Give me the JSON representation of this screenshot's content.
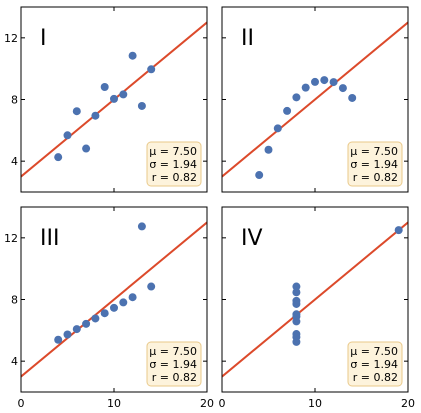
{
  "chart_data": [
    {
      "type": "scatter",
      "panel_label": "I",
      "x": [
        10,
        8,
        13,
        9,
        11,
        14,
        6,
        4,
        12,
        7,
        5
      ],
      "y": [
        8.04,
        6.95,
        7.58,
        8.81,
        8.33,
        9.96,
        7.24,
        4.26,
        10.84,
        4.82,
        5.68
      ],
      "fit": {
        "intercept": 3.0,
        "slope": 0.5
      },
      "stats": {
        "mu": "μ = 7.50",
        "sigma": "σ = 1.94",
        "r": "r = 0.82"
      },
      "xlim": [
        0,
        20
      ],
      "ylim": [
        2,
        14
      ],
      "xticks": [
        0,
        10,
        20
      ],
      "yticks": [
        4,
        8,
        12
      ],
      "show_xticklabels": false,
      "show_yticklabels": true,
      "point_color": "#4c72b0",
      "line_color": "#dc4a2b"
    },
    {
      "type": "scatter",
      "panel_label": "II",
      "x": [
        10,
        8,
        13,
        9,
        11,
        14,
        6,
        4,
        12,
        7,
        5
      ],
      "y": [
        9.14,
        8.14,
        8.74,
        8.77,
        9.26,
        8.1,
        6.13,
        3.1,
        9.13,
        7.26,
        4.74
      ],
      "fit": {
        "intercept": 3.0,
        "slope": 0.5
      },
      "stats": {
        "mu": "μ = 7.50",
        "sigma": "σ = 1.94",
        "r": "r = 0.82"
      },
      "xlim": [
        0,
        20
      ],
      "ylim": [
        2,
        14
      ],
      "xticks": [
        0,
        10,
        20
      ],
      "yticks": [
        4,
        8,
        12
      ],
      "show_xticklabels": false,
      "show_yticklabels": false,
      "point_color": "#4c72b0",
      "line_color": "#dc4a2b"
    },
    {
      "type": "scatter",
      "panel_label": "III",
      "x": [
        10,
        8,
        13,
        9,
        11,
        14,
        6,
        4,
        12,
        7,
        5
      ],
      "y": [
        7.46,
        6.77,
        12.74,
        7.11,
        7.81,
        8.84,
        6.08,
        5.39,
        8.15,
        6.42,
        5.73
      ],
      "fit": {
        "intercept": 3.0,
        "slope": 0.5
      },
      "stats": {
        "mu": "μ = 7.50",
        "sigma": "σ = 1.94",
        "r": "r = 0.82"
      },
      "xlim": [
        0,
        20
      ],
      "ylim": [
        2,
        14
      ],
      "xticks": [
        0,
        10,
        20
      ],
      "yticks": [
        4,
        8,
        12
      ],
      "show_xticklabels": true,
      "show_yticklabels": true,
      "xticklabels": [
        "0",
        "10",
        "20"
      ],
      "point_color": "#4c72b0",
      "line_color": "#dc4a2b"
    },
    {
      "type": "scatter",
      "panel_label": "IV",
      "x": [
        8,
        8,
        8,
        8,
        8,
        8,
        8,
        19,
        8,
        8,
        8
      ],
      "y": [
        6.58,
        5.76,
        7.71,
        8.84,
        8.47,
        7.04,
        5.25,
        12.5,
        5.56,
        7.91,
        6.89
      ],
      "fit": {
        "intercept": 3.0,
        "slope": 0.5
      },
      "stats": {
        "mu": "μ = 7.50",
        "sigma": "σ = 1.94",
        "r": "r = 0.82"
      },
      "xlim": [
        0,
        20
      ],
      "ylim": [
        2,
        14
      ],
      "xticks": [
        0,
        10,
        20
      ],
      "yticks": [
        4,
        8,
        12
      ],
      "show_xticklabels": true,
      "show_yticklabels": false,
      "xticklabels": [
        "0",
        "10",
        "20"
      ],
      "point_color": "#4c72b0",
      "line_color": "#dc4a2b"
    }
  ]
}
